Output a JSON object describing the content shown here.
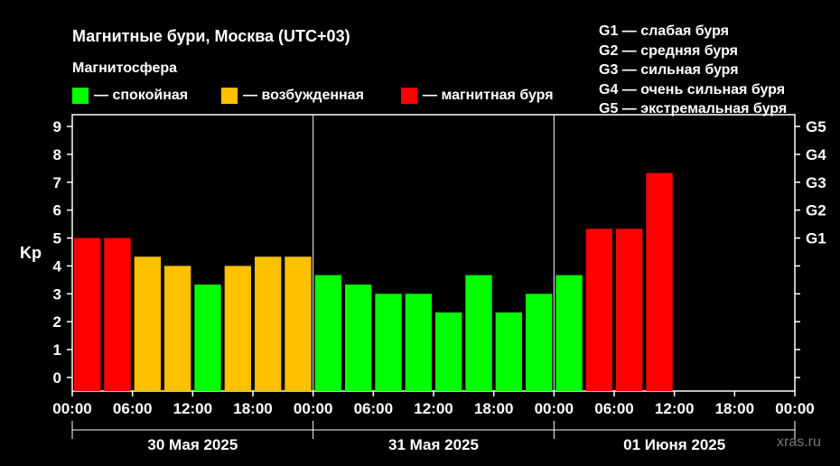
{
  "chart_data": {
    "type": "bar",
    "title": "Магнитные бури, Москва (UTC+03)",
    "subtitle": "Магнитосфера",
    "ylabel": "Kp",
    "ylim": [
      0,
      9
    ],
    "yticks": [
      "0",
      "1",
      "2",
      "3",
      "4",
      "5",
      "6",
      "7",
      "8",
      "9"
    ],
    "g_ticks": [
      {
        "label": "G1",
        "kp": 5
      },
      {
        "label": "G2",
        "kp": 6
      },
      {
        "label": "G3",
        "kp": 7
      },
      {
        "label": "G4",
        "kp": 8
      },
      {
        "label": "G5",
        "kp": 9
      }
    ],
    "x_tick_labels": [
      "00:00",
      "06:00",
      "12:00",
      "18:00",
      "00:00",
      "06:00",
      "12:00",
      "18:00",
      "00:00",
      "06:00",
      "12:00",
      "18:00",
      "00:00"
    ],
    "days": [
      "30 Мая 2025",
      "31 Мая 2025",
      "01 Июня 2025"
    ],
    "bar_interval_hours": 3,
    "values": [
      5.0,
      5.0,
      4.33,
      4.0,
      3.33,
      4.0,
      4.33,
      4.33,
      3.67,
      3.33,
      3.0,
      3.0,
      2.33,
      3.67,
      2.33,
      3.0,
      3.67,
      5.33,
      5.33,
      7.33
    ],
    "levels": [
      "storm",
      "storm",
      "excited",
      "excited",
      "calm",
      "excited",
      "excited",
      "excited",
      "calm",
      "calm",
      "calm",
      "calm",
      "calm",
      "calm",
      "calm",
      "calm",
      "calm",
      "storm",
      "storm",
      "storm"
    ],
    "legend": [
      {
        "key": "calm",
        "label": "— спокойная",
        "color": "#00ff00"
      },
      {
        "key": "excited",
        "label": "— возбужденная",
        "color": "#ffc000"
      },
      {
        "key": "storm",
        "label": "— магнитная буря",
        "color": "#ff0000"
      }
    ],
    "g_legend": [
      "G1 — слабая буря",
      "G2 — средняя буря",
      "G3 — сильная буря",
      "G4 — очень сильная буря",
      "G5 — экстремальная буря"
    ],
    "grid": false
  },
  "watermark": "xras.ru"
}
